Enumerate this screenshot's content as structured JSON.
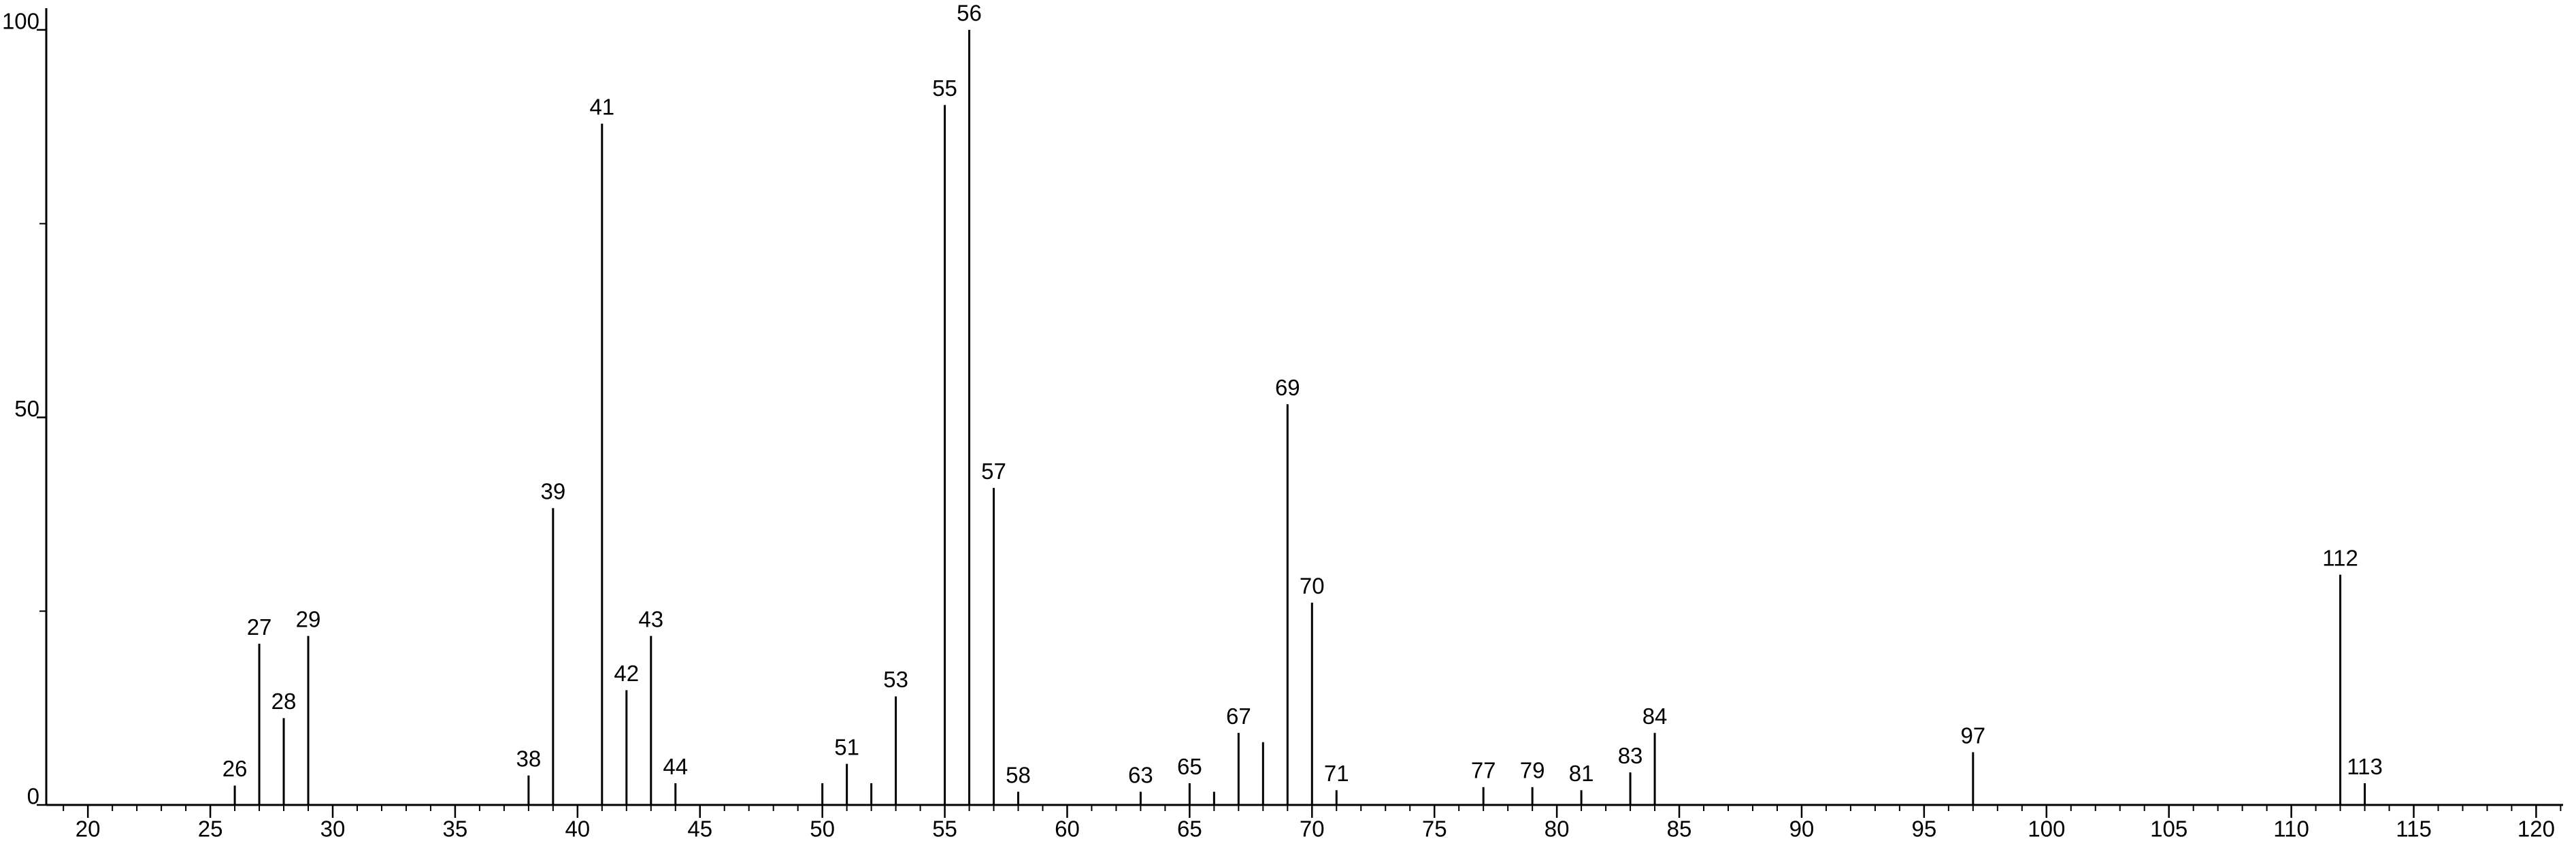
{
  "chart_data": {
    "type": "stick",
    "x": [
      26,
      27,
      28,
      29,
      38,
      39,
      41,
      42,
      43,
      44,
      50,
      51,
      52,
      53,
      55,
      56,
      57,
      58,
      63,
      65,
      66,
      67,
      68,
      69,
      70,
      71,
      77,
      79,
      81,
      83,
      84,
      97,
      112,
      113
    ],
    "values": [
      2.5,
      20.8,
      11.2,
      21.8,
      3.8,
      38.3,
      87.9,
      14.8,
      21.8,
      2.8,
      2.8,
      5.3,
      2.8,
      14,
      90.3,
      100,
      40.9,
      1.7,
      1.7,
      2.8,
      1.7,
      9.3,
      8.1,
      51.7,
      26.1,
      1.9,
      2.3,
      2.3,
      1.9,
      4.2,
      9.3,
      6.8,
      29.7,
      2.8
    ],
    "peak_labels": [
      26,
      27,
      28,
      29,
      38,
      39,
      41,
      42,
      43,
      44,
      null,
      51,
      null,
      53,
      55,
      56,
      57,
      58,
      63,
      65,
      null,
      67,
      null,
      69,
      70,
      71,
      77,
      79,
      81,
      83,
      84,
      97,
      112,
      113
    ],
    "color": "#000000",
    "xlim": [
      18.3,
      121.1
    ],
    "ylim": [
      0,
      102.8
    ],
    "xticks": [
      20,
      25,
      30,
      35,
      40,
      45,
      50,
      55,
      60,
      65,
      70,
      75,
      80,
      85,
      90,
      95,
      100,
      105,
      110,
      115,
      120
    ],
    "yticks": [
      0,
      50,
      100
    ],
    "x_minor_step": 1,
    "y_minor_step": 25
  }
}
